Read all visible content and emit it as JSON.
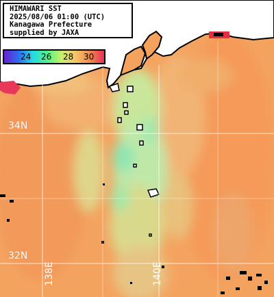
{
  "title_box": {
    "lines": [
      "HIMAWARI SST",
      "2025/08/06 01:00 (UTC)",
      "Kanagawa Prefecture",
      "supplied by JAXA"
    ]
  },
  "legend": {
    "ticks": [
      "24",
      "26",
      "28",
      "30"
    ],
    "colors": [
      "#6a1fd0",
      "#2d6cf0",
      "#27d9e6",
      "#4df28a",
      "#c8f06a",
      "#f5c46a",
      "#f08a4a",
      "#e8305a"
    ]
  },
  "grid_labels": {
    "lat": [
      "34N",
      "32N"
    ],
    "lon": [
      "138E",
      "140E"
    ]
  },
  "colors": {
    "sea_warm": "#f6a25e",
    "sea_mid": "#f3c27a",
    "sea_cool": "#b8e8a0",
    "sea_cold": "#7fe0b0",
    "land": "#ffffff",
    "coast": "#000000",
    "grid": "#ffffff"
  }
}
